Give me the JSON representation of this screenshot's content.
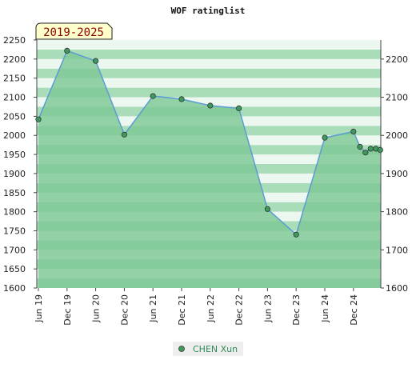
{
  "chart_data": {
    "type": "area",
    "title": "WOF ratinglist",
    "period": "2019-2025",
    "x_ticks": [
      "Jun 19",
      "Dec 19",
      "Jun 20",
      "Dec 20",
      "Jun 21",
      "Dec 21",
      "Jun 22",
      "Dec 22",
      "Jun 23",
      "Dec 23",
      "Jun 24",
      "Dec 24"
    ],
    "y_left_ticks": [
      1600,
      1650,
      1700,
      1750,
      1800,
      1850,
      1900,
      1950,
      2000,
      2050,
      2100,
      2150,
      2200,
      2250
    ],
    "y_right_ticks": [
      1600,
      1700,
      1800,
      1900,
      2000,
      2100,
      2200
    ],
    "ylim": [
      1600,
      2250
    ],
    "series": [
      {
        "name": "CHEN Xun",
        "points": [
          {
            "x": "Jun 19",
            "y": 2042
          },
          {
            "x": "Dec 19",
            "y": 2222
          },
          {
            "x": "Jun 20",
            "y": 2195
          },
          {
            "x": "Dec 20",
            "y": 2002
          },
          {
            "x": "Jun 21",
            "y": 2103
          },
          {
            "x": "Dec 21",
            "y": 2095
          },
          {
            "x": "Jun 22",
            "y": 2078
          },
          {
            "x": "Dec 22",
            "y": 2071
          },
          {
            "x": "Jun 23",
            "y": 1807
          },
          {
            "x": "Dec 23",
            "y": 1740
          },
          {
            "x": "Jun 24",
            "y": 1994
          },
          {
            "x": "Dec 24",
            "y": 2010
          },
          {
            "x": "Jan 25",
            "y": 1970
          },
          {
            "x": "Feb 25",
            "y": 1955
          },
          {
            "x": "Mar 25",
            "y": 1965
          },
          {
            "x": "Apr 25",
            "y": 1965
          },
          {
            "x": "May 25",
            "y": 1962
          }
        ]
      }
    ]
  },
  "colors": {
    "line": "#5b9bd5",
    "marker_fill": "#3d9a5c",
    "area_fill": "#7cc793",
    "band_dark": "#a9dcb8",
    "band_light": "#ebf7ef",
    "period_badge": "#ffffcc",
    "legend_bg": "#eeeeee"
  }
}
